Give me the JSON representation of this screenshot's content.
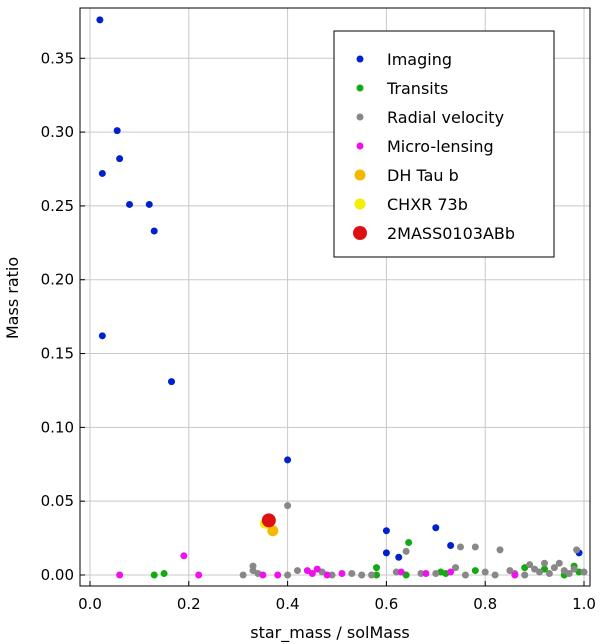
{
  "chart_data": {
    "type": "scatter",
    "xlabel": "star_mass / solMass",
    "ylabel": "Mass ratio",
    "xlim": [
      0,
      1.0
    ],
    "ylim": [
      0,
      0.38
    ],
    "grid": true,
    "legend_position": "top-right",
    "x_ticks": [
      {
        "value": 0.0,
        "label": "0.0"
      },
      {
        "value": 0.2,
        "label": "0.2"
      },
      {
        "value": 0.4,
        "label": "0.4"
      },
      {
        "value": 0.6,
        "label": "0.6"
      },
      {
        "value": 0.8,
        "label": "0.8"
      },
      {
        "value": 1.0,
        "label": "1.0"
      }
    ],
    "y_ticks": [
      {
        "value": 0.0,
        "label": "0.00"
      },
      {
        "value": 0.05,
        "label": "0.05"
      },
      {
        "value": 0.1,
        "label": "0.10"
      },
      {
        "value": 0.15,
        "label": "0.15"
      },
      {
        "value": 0.2,
        "label": "0.20"
      },
      {
        "value": 0.25,
        "label": "0.25"
      },
      {
        "value": 0.3,
        "label": "0.30"
      },
      {
        "value": 0.35,
        "label": "0.35"
      }
    ],
    "series": [
      {
        "name": "Imaging",
        "color": "#0022cc",
        "marker": "small",
        "points": [
          [
            0.02,
            0.376
          ],
          [
            0.055,
            0.301
          ],
          [
            0.06,
            0.282
          ],
          [
            0.025,
            0.272
          ],
          [
            0.08,
            0.251
          ],
          [
            0.12,
            0.251
          ],
          [
            0.13,
            0.233
          ],
          [
            0.025,
            0.162
          ],
          [
            0.165,
            0.131
          ],
          [
            0.4,
            0.078
          ],
          [
            0.6,
            0.03
          ],
          [
            0.7,
            0.032
          ],
          [
            0.6,
            0.015
          ],
          [
            0.625,
            0.012
          ],
          [
            0.73,
            0.02
          ],
          [
            0.99,
            0.015
          ]
        ]
      },
      {
        "name": "Transits",
        "color": "#11aa11",
        "marker": "small",
        "points": [
          [
            0.13,
            0.0
          ],
          [
            0.15,
            0.001
          ],
          [
            0.58,
            0.005
          ],
          [
            0.58,
            0.0
          ],
          [
            0.645,
            0.022
          ],
          [
            0.64,
            0.0
          ],
          [
            0.71,
            0.002
          ],
          [
            0.72,
            0.001
          ],
          [
            0.78,
            0.003
          ],
          [
            0.88,
            0.005
          ],
          [
            0.92,
            0.004
          ],
          [
            0.96,
            0.0
          ],
          [
            0.98,
            0.006
          ],
          [
            0.99,
            0.002
          ]
        ]
      },
      {
        "name": "Radial velocity",
        "color": "#888888",
        "marker": "small",
        "points": [
          [
            0.31,
            0.0
          ],
          [
            0.33,
            0.003
          ],
          [
            0.33,
            0.006
          ],
          [
            0.34,
            0.001
          ],
          [
            0.4,
            0.047
          ],
          [
            0.4,
            0.0
          ],
          [
            0.42,
            0.003
          ],
          [
            0.47,
            0.002
          ],
          [
            0.49,
            0.0
          ],
          [
            0.53,
            0.001
          ],
          [
            0.55,
            0.0
          ],
          [
            0.57,
            0.0
          ],
          [
            0.62,
            0.002
          ],
          [
            0.64,
            0.016
          ],
          [
            0.67,
            0.001
          ],
          [
            0.7,
            0.001
          ],
          [
            0.74,
            0.005
          ],
          [
            0.75,
            0.019
          ],
          [
            0.76,
            0.0
          ],
          [
            0.78,
            0.019
          ],
          [
            0.8,
            0.002
          ],
          [
            0.82,
            0.0
          ],
          [
            0.83,
            0.017
          ],
          [
            0.85,
            0.003
          ],
          [
            0.86,
            0.001
          ],
          [
            0.88,
            0.0
          ],
          [
            0.89,
            0.007
          ],
          [
            0.9,
            0.004
          ],
          [
            0.91,
            0.002
          ],
          [
            0.92,
            0.008
          ],
          [
            0.93,
            0.001
          ],
          [
            0.94,
            0.005
          ],
          [
            0.95,
            0.008
          ],
          [
            0.96,
            0.003
          ],
          [
            0.97,
            0.001
          ],
          [
            0.98,
            0.004
          ],
          [
            0.985,
            0.017
          ],
          [
            1.0,
            0.002
          ]
        ]
      },
      {
        "name": "Micro-lensing",
        "color": "#ee11ee",
        "marker": "small",
        "points": [
          [
            0.06,
            0.0
          ],
          [
            0.19,
            0.013
          ],
          [
            0.22,
            0.0
          ],
          [
            0.35,
            0.0
          ],
          [
            0.38,
            0.0
          ],
          [
            0.44,
            0.003
          ],
          [
            0.45,
            0.001
          ],
          [
            0.46,
            0.004
          ],
          [
            0.48,
            0.0
          ],
          [
            0.51,
            0.001
          ],
          [
            0.63,
            0.002
          ],
          [
            0.68,
            0.001
          ],
          [
            0.73,
            0.002
          ],
          [
            0.86,
            0.0
          ]
        ]
      },
      {
        "name": "DH Tau b",
        "color": "#f5b800",
        "marker": "medium",
        "points": [
          [
            0.37,
            0.03
          ]
        ]
      },
      {
        "name": "CHXR 73b",
        "color": "#f0f000",
        "marker": "medium",
        "points": [
          [
            0.355,
            0.035
          ]
        ]
      },
      {
        "name": "2MASS0103ABb",
        "color": "#dd1111",
        "marker": "large",
        "points": [
          [
            0.362,
            0.037
          ]
        ]
      }
    ]
  }
}
